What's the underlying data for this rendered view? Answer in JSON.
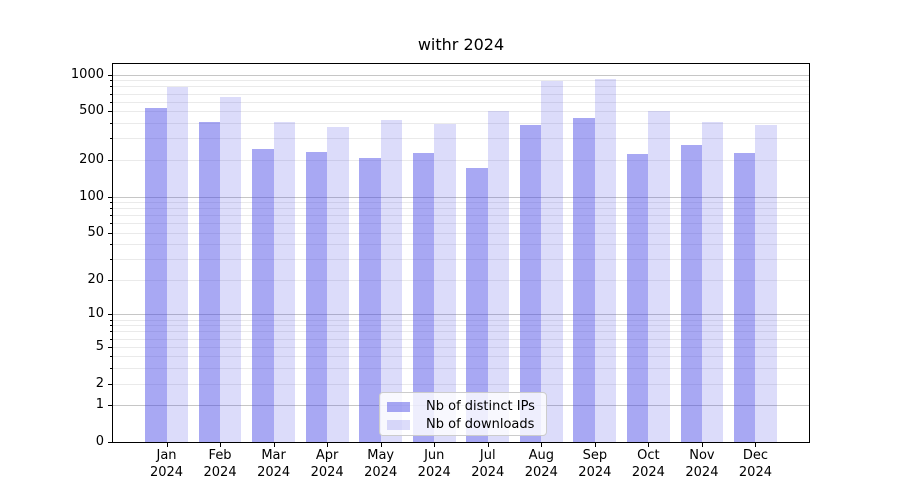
{
  "title": "withr 2024",
  "chart_data": {
    "type": "bar",
    "title": "withr 2024",
    "categories": [
      "Jan 2024",
      "Feb 2024",
      "Mar 2024",
      "Apr 2024",
      "May 2024",
      "Jun 2024",
      "Jul 2024",
      "Aug 2024",
      "Sep 2024",
      "Oct 2024",
      "Nov 2024",
      "Dec 2024"
    ],
    "series": [
      {
        "name": "Nb of distinct IPs",
        "color_hex": "#a8a8f2",
        "color_rgba": "rgba(66,66,228,0.46)",
        "values": [
          530,
          408,
          245,
          233,
          209,
          228,
          172,
          390,
          441,
          223,
          265,
          230
        ]
      },
      {
        "name": "Nb of downloads",
        "color_hex": "#dcdcfa",
        "color_rgba": "rgba(66,66,228,0.185)",
        "values": [
          785,
          650,
          411,
          373,
          428,
          395,
          505,
          892,
          928,
          500,
          408,
          385
        ]
      }
    ],
    "xlabel": "",
    "ylabel": "",
    "y_scale": "log1p",
    "ylim": [
      0,
      1220
    ],
    "y_ticks": [
      0,
      1,
      2,
      5,
      10,
      20,
      50,
      100,
      200,
      500,
      1000
    ],
    "y_major_gridlines": [
      1,
      10,
      100,
      1000
    ],
    "y_minor_gridlines": [
      2,
      3,
      4,
      5,
      6,
      7,
      8,
      9,
      20,
      30,
      40,
      50,
      60,
      70,
      80,
      90,
      200,
      300,
      400,
      500,
      600,
      700,
      800,
      900
    ],
    "grid": true,
    "legend_position": "lower center",
    "colors": {
      "background": "#ffffff",
      "axis": "#000000",
      "grid_major": "#c6c6c6",
      "grid_minor": "#eaeaea",
      "legend_border": "#cccccc"
    }
  }
}
